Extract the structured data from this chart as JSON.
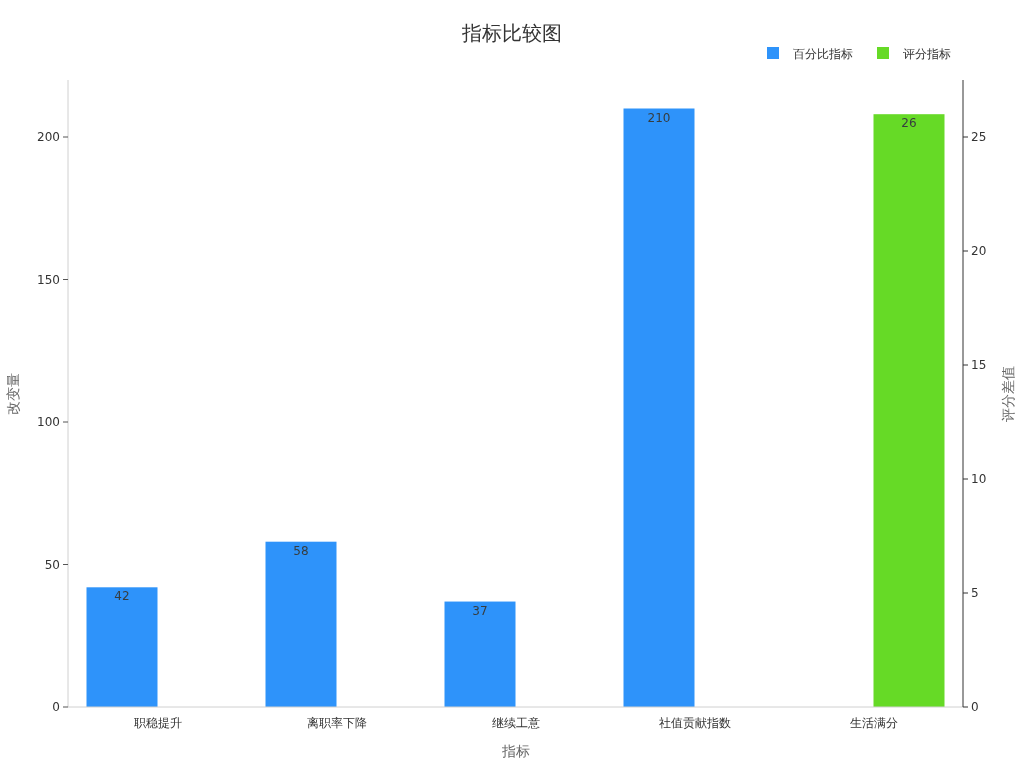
{
  "chart_data": {
    "type": "bar",
    "title": "指标比较图",
    "xlabel": "指标",
    "ylabel": "改变量",
    "y2label": "评分差值",
    "categories": [
      "职稳提升",
      "离职率下降",
      "继续工意",
      "社值贡献指数",
      "生活满分"
    ],
    "series": [
      {
        "name": "百分比指标",
        "color": "#2e93fa",
        "values": [
          42,
          58,
          37,
          210,
          null
        ]
      },
      {
        "name": "评分指标",
        "color": "#66da26",
        "values": [
          null,
          null,
          null,
          null,
          26
        ],
        "axis": "y2"
      }
    ],
    "ylim": [
      0,
      220
    ],
    "yticks": [
      0,
      50,
      100,
      150,
      200
    ],
    "y2lim": [
      0,
      27.5
    ],
    "y2ticks": [
      0,
      5,
      10,
      15,
      20,
      25
    ],
    "data_labels": true,
    "legend": "top right",
    "grid": false
  }
}
